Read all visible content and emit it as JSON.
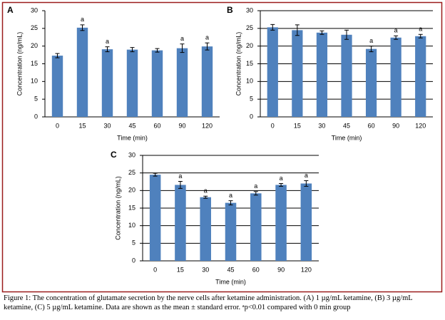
{
  "chart_data": [
    {
      "type": "bar",
      "panel_label": "A",
      "x_label": "Time (min)",
      "y_label": "Concentration (ng/mL)",
      "categories": [
        "0",
        "15",
        "30",
        "45",
        "60",
        "90",
        "120"
      ],
      "values": [
        17.3,
        25.2,
        19.1,
        19.0,
        18.8,
        19.4,
        19.9
      ],
      "errors": [
        0.6,
        0.8,
        0.7,
        0.6,
        0.5,
        1.2,
        1.0
      ],
      "annotations": [
        null,
        "a",
        "a",
        null,
        null,
        "a",
        "a"
      ],
      "color": "#4f81bd",
      "ylim": [
        0,
        30
      ],
      "yticks": [
        0,
        5,
        10,
        15,
        20,
        25,
        30
      ],
      "grid": false
    },
    {
      "type": "bar",
      "panel_label": "B",
      "x_label": "Time (min)",
      "y_label": "Concentration (ng/mL)",
      "categories": [
        "0",
        "15",
        "30",
        "45",
        "60",
        "90",
        "120"
      ],
      "values": [
        25.3,
        24.5,
        23.8,
        23.2,
        19.2,
        22.4,
        22.8
      ],
      "errors": [
        0.8,
        1.5,
        0.5,
        1.3,
        0.8,
        0.5,
        0.5
      ],
      "annotations": [
        null,
        null,
        null,
        null,
        "a",
        "a",
        "a"
      ],
      "color": "#4f81bd",
      "ylim": [
        0,
        30
      ],
      "yticks": [
        0,
        5,
        10,
        15,
        20,
        25,
        30
      ],
      "grid": true
    },
    {
      "type": "bar",
      "panel_label": "C",
      "x_label": "Time (min)",
      "y_label": "Concentration (ng/mL)",
      "categories": [
        "0",
        "15",
        "30",
        "45",
        "60",
        "90",
        "120"
      ],
      "values": [
        24.5,
        21.6,
        18.1,
        16.5,
        19.2,
        21.6,
        22.0
      ],
      "errors": [
        0.4,
        1.0,
        0.3,
        0.6,
        0.5,
        0.4,
        0.8
      ],
      "annotations": [
        null,
        "a",
        "a",
        "a",
        "a",
        "a",
        "a"
      ],
      "color": "#4f81bd",
      "ylim": [
        0,
        30
      ],
      "yticks": [
        0,
        5,
        10,
        15,
        20,
        25,
        30
      ],
      "grid": true
    }
  ],
  "caption": "Figure 1: The concentration of glutamate secretion by the nerve cells after ketamine administration. (A) 1 µg/mL ketamine, (B) 3 µg/mL ketamine, (C) 5 µg/mL ketamine. Data are shown as the mean ± standard error. ᵃp<0.01 compared with 0 min group"
}
